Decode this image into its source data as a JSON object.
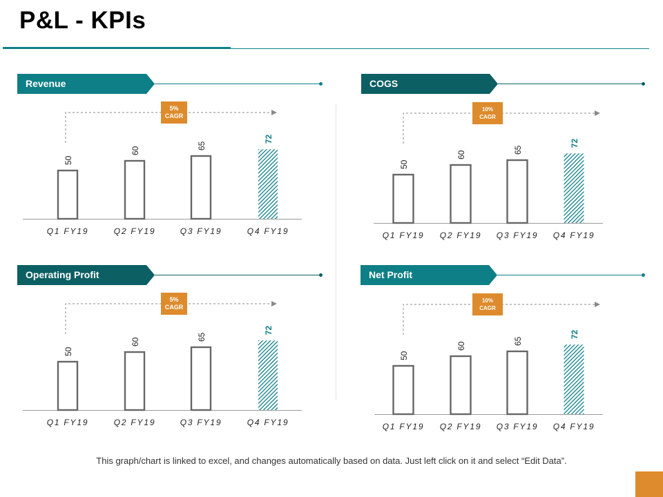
{
  "page": {
    "title": "P&L - KPIs",
    "footnote": "This graph/chart is linked to excel, and changes automatically based on data. Just left click on it and select “Edit Data”."
  },
  "colors": {
    "accent_teal": "#0e7f86",
    "dark_teal": "#0c5f63",
    "orange": "#dd8b2c",
    "bar_outline": "#666666"
  },
  "panels": [
    {
      "title": "Revenue",
      "banner_color": "#0e7f86",
      "cagr": [
        "5%",
        "CAGR"
      ]
    },
    {
      "title": "COGS",
      "banner_color": "#0c5f63",
      "cagr": [
        "10%",
        "CAGR"
      ]
    },
    {
      "title": "Operating Profit",
      "banner_color": "#0c5f63",
      "cagr": [
        "5%",
        "CAGR"
      ]
    },
    {
      "title": "Net Profit",
      "banner_color": "#0e7f86",
      "cagr": [
        "10%",
        "CAGR"
      ]
    }
  ],
  "chart_data": [
    {
      "type": "bar",
      "title": "Revenue",
      "categories": [
        "Q1 FY19",
        "Q2 FY19",
        "Q3 FY19",
        "Q4 FY19"
      ],
      "values": [
        50,
        60,
        65,
        72
      ],
      "highlight_last": true,
      "annotation": "5% CAGR",
      "grid": false
    },
    {
      "type": "bar",
      "title": "COGS",
      "categories": [
        "Q1 FY19",
        "Q2 FY19",
        "Q3 FY19",
        "Q4 FY19"
      ],
      "values": [
        50,
        60,
        65,
        72
      ],
      "highlight_last": true,
      "annotation": "10% CAGR",
      "grid": false
    },
    {
      "type": "bar",
      "title": "Operating Profit",
      "categories": [
        "Q1 FY19",
        "Q2 FY19",
        "Q3 FY19",
        "Q4 FY19"
      ],
      "values": [
        50,
        60,
        65,
        72
      ],
      "highlight_last": true,
      "annotation": "5% CAGR",
      "grid": false
    },
    {
      "type": "bar",
      "title": "Net Profit",
      "categories": [
        "Q1 FY19",
        "Q2 FY19",
        "Q3 FY19",
        "Q4 FY19"
      ],
      "values": [
        50,
        60,
        65,
        72
      ],
      "highlight_last": true,
      "annotation": "10% CAGR",
      "grid": false
    }
  ]
}
